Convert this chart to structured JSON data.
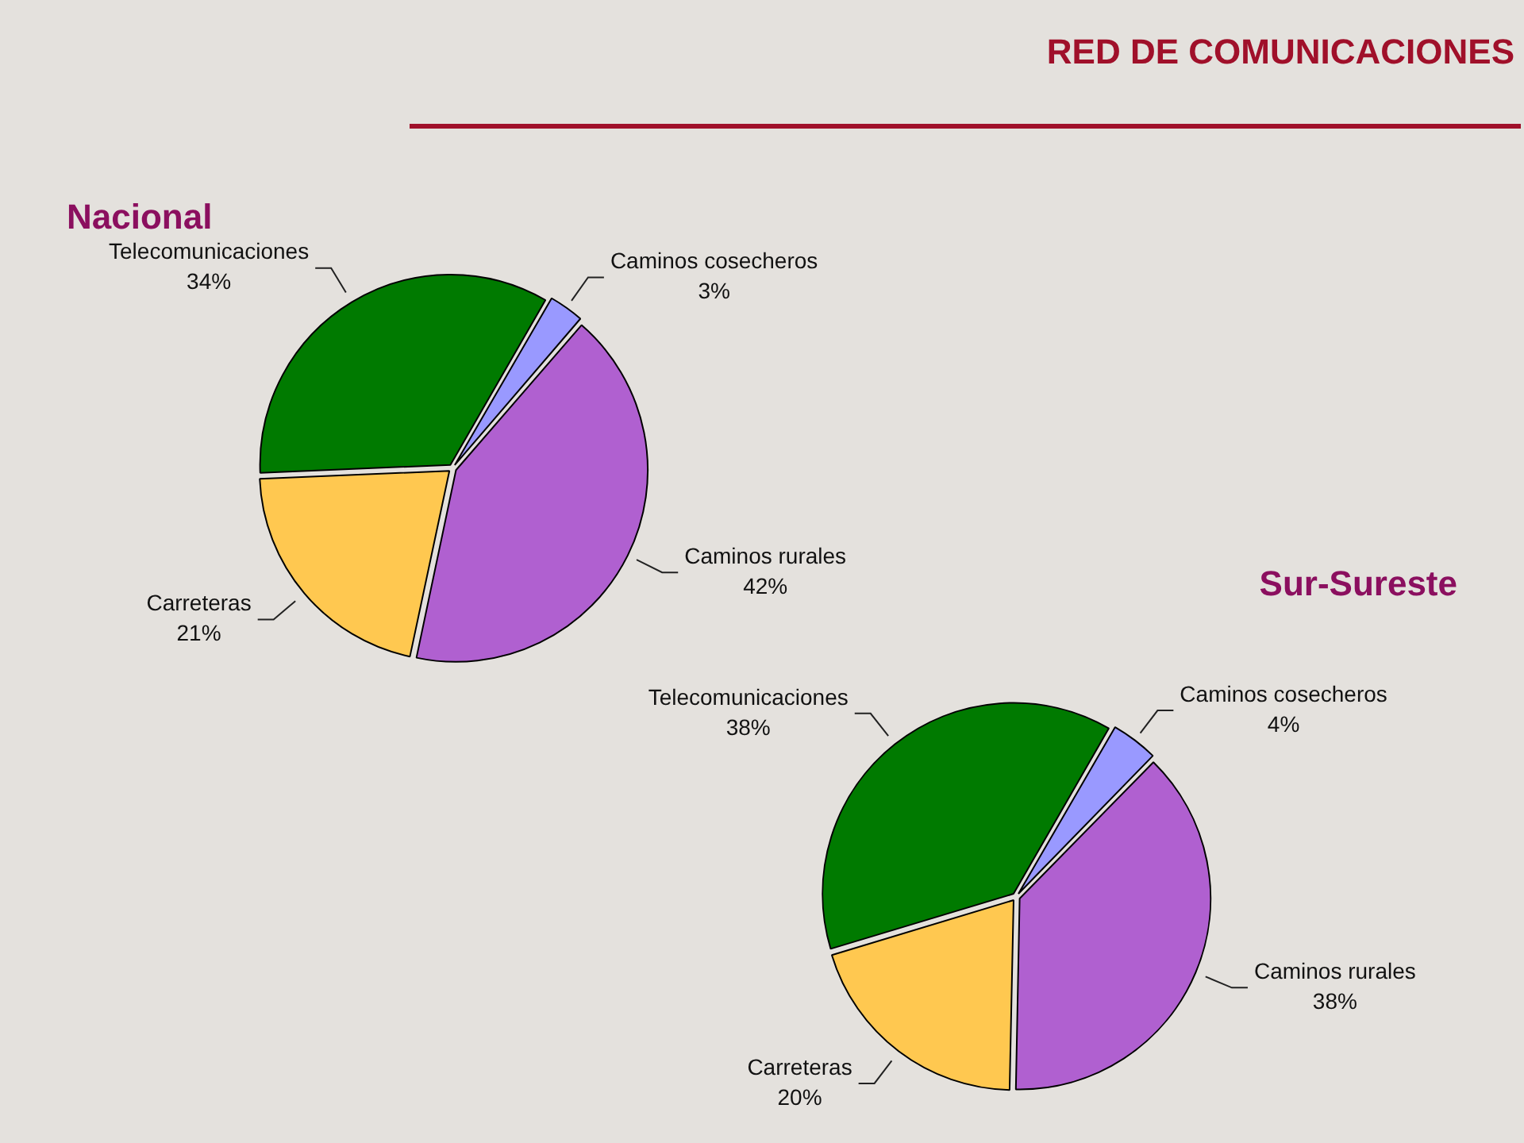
{
  "chart_data": [
    {
      "type": "other",
      "title": "RED DE COMUNICACIONES"
    },
    {
      "type": "pie",
      "title": "Nacional",
      "categories": [
        "Caminos cosecheros",
        "Caminos rurales",
        "Carreteras",
        "Telecomunicaciones"
      ],
      "values": [
        3,
        42,
        21,
        34
      ],
      "value_labels": [
        "3%",
        "42%",
        "21%",
        "34%"
      ],
      "colors": [
        "#9999ff",
        "#b060d0",
        "#ffc850",
        "#007a00"
      ]
    },
    {
      "type": "pie",
      "title": "Sur-Sureste",
      "categories": [
        "Caminos cosecheros",
        "Caminos rurales",
        "Carreteras",
        "Telecomunicaciones"
      ],
      "values": [
        4,
        38,
        20,
        38
      ],
      "value_labels": [
        "4%",
        "38%",
        "20%",
        "38%"
      ],
      "colors": [
        "#9999ff",
        "#b060d0",
        "#ffc850",
        "#007a00"
      ]
    }
  ]
}
